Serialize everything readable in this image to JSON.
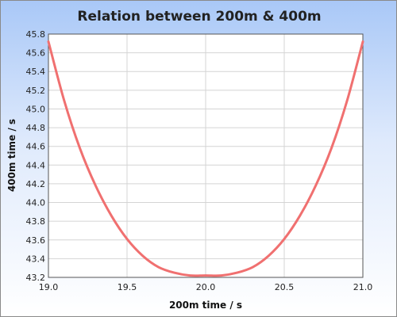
{
  "chart_data": {
    "type": "line",
    "title": "Relation between 200m & 400m",
    "xlabel": "200m time / s",
    "ylabel": "400m time / s",
    "xlim": [
      19.0,
      21.0
    ],
    "ylim": [
      43.2,
      45.8
    ],
    "x_ticks": [
      "19.0",
      "19.5",
      "20.0",
      "20.5",
      "21.0"
    ],
    "y_ticks": [
      "43.2",
      "43.4",
      "43.6",
      "43.8",
      "44.0",
      "44.2",
      "44.4",
      "44.6",
      "44.8",
      "45.0",
      "45.2",
      "45.4",
      "45.6",
      "45.8"
    ],
    "grid": true,
    "series": [
      {
        "color": "#f07070",
        "x": [
          19.0,
          19.1,
          19.2,
          19.3,
          19.4,
          19.5,
          19.6,
          19.7,
          19.8,
          19.9,
          20.0,
          20.1,
          20.2,
          20.3,
          20.4,
          20.5,
          20.6,
          20.7,
          20.8,
          20.9,
          21.0
        ],
        "y": [
          45.72,
          45.09,
          44.58,
          44.18,
          43.86,
          43.61,
          43.43,
          43.31,
          43.25,
          43.22,
          43.22,
          43.22,
          43.25,
          43.31,
          43.43,
          43.61,
          43.86,
          44.18,
          44.58,
          45.09,
          45.72
        ]
      }
    ]
  }
}
